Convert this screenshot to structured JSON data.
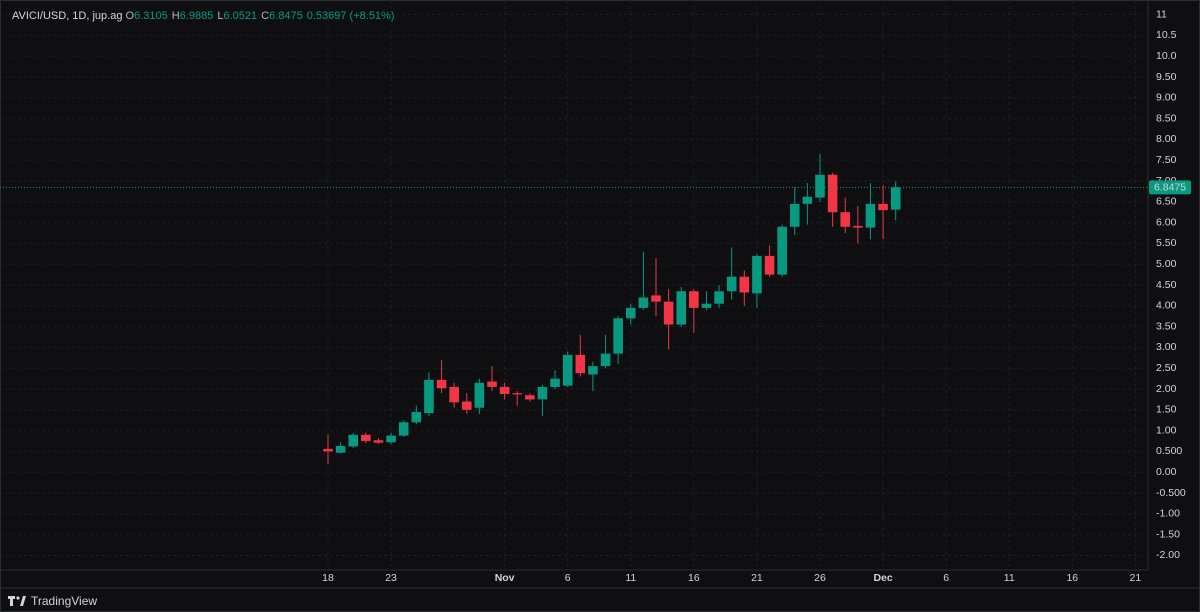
{
  "chart_data": {
    "type": "candlestick",
    "title": "AVICI/USD, 1D, jup.ag",
    "ohlc_letters": [
      "O",
      "H",
      "L",
      "C"
    ],
    "change_label": "0.53697 (+8.51%)",
    "up_color": "#089981",
    "down_color": "#f23645",
    "x": [
      "Oct 18",
      "Oct 19",
      "Oct 20",
      "Oct 21",
      "Oct 22",
      "Oct 23",
      "Oct 24",
      "Oct 25",
      "Oct 26",
      "Oct 27",
      "Oct 28",
      "Oct 29",
      "Oct 30",
      "Oct 31",
      "Nov 1",
      "Nov 2",
      "Nov 3",
      "Nov 4",
      "Nov 5",
      "Nov 6",
      "Nov 7",
      "Nov 8",
      "Nov 9",
      "Nov 10",
      "Nov 11",
      "Nov 12",
      "Nov 13",
      "Nov 14",
      "Nov 15",
      "Nov 16",
      "Nov 17",
      "Nov 18",
      "Nov 19",
      "Nov 20",
      "Nov 21",
      "Nov 22",
      "Nov 23",
      "Nov 24",
      "Nov 25",
      "Nov 26",
      "Nov 27",
      "Nov 28",
      "Nov 29",
      "Nov 30",
      "Dec 1",
      "Dec 2"
    ],
    "open": [
      0.56,
      0.47,
      0.62,
      0.9,
      0.77,
      0.72,
      0.88,
      1.2,
      1.42,
      2.22,
      2.05,
      1.7,
      1.55,
      2.18,
      2.05,
      1.9,
      1.85,
      1.75,
      2.05,
      2.08,
      2.82,
      2.35,
      2.55,
      2.85,
      3.7,
      3.95,
      4.25,
      4.1,
      3.55,
      4.35,
      3.95,
      4.05,
      4.35,
      4.7,
      4.3,
      5.2,
      4.75,
      5.9,
      6.45,
      6.6,
      7.15,
      6.25,
      5.92,
      5.88,
      6.45,
      6.3105
    ],
    "high": [
      0.9,
      0.72,
      0.95,
      0.95,
      0.82,
      0.95,
      1.25,
      1.6,
      2.4,
      2.7,
      2.15,
      1.9,
      2.25,
      2.55,
      2.15,
      1.95,
      1.9,
      2.1,
      2.45,
      2.9,
      3.3,
      2.65,
      3.3,
      3.75,
      4.05,
      5.3,
      5.15,
      4.4,
      4.45,
      4.4,
      4.35,
      4.5,
      5.4,
      4.85,
      5.25,
      5.45,
      5.95,
      6.85,
      6.95,
      7.65,
      7.2,
      6.6,
      6.4,
      6.95,
      6.9,
      6.9885
    ],
    "low": [
      0.2,
      0.45,
      0.58,
      0.7,
      0.68,
      0.68,
      0.85,
      1.15,
      1.35,
      1.9,
      1.55,
      1.4,
      1.4,
      1.95,
      1.75,
      1.6,
      1.7,
      1.35,
      2.0,
      2.05,
      2.3,
      1.95,
      2.5,
      2.6,
      3.55,
      3.9,
      3.75,
      2.95,
      3.5,
      3.35,
      3.9,
      3.95,
      4.15,
      4.0,
      3.95,
      4.7,
      4.7,
      5.7,
      5.95,
      6.5,
      5.9,
      5.75,
      5.5,
      5.6,
      5.6,
      6.0521
    ],
    "close": [
      0.5,
      0.63,
      0.9,
      0.75,
      0.71,
      0.88,
      1.2,
      1.45,
      2.22,
      2.02,
      1.68,
      1.5,
      2.15,
      2.05,
      1.88,
      1.87,
      1.75,
      2.05,
      2.25,
      2.82,
      2.38,
      2.55,
      2.85,
      3.7,
      3.95,
      4.2,
      4.1,
      3.55,
      4.35,
      3.95,
      4.05,
      4.35,
      4.7,
      4.32,
      5.2,
      4.75,
      5.9,
      6.45,
      6.62,
      7.15,
      6.25,
      5.9,
      5.88,
      6.45,
      6.3,
      6.8475
    ],
    "ylim": [
      -2.35,
      11.35
    ],
    "yticks": [
      11,
      10.5,
      {
        "value": 10,
        "label": "10.0"
      },
      {
        "value": 9.5,
        "label": "9.50"
      },
      {
        "value": 9,
        "label": "9.00"
      },
      {
        "value": 8.5,
        "label": "8.50"
      },
      {
        "value": 8,
        "label": "8.00"
      },
      {
        "value": 7.5,
        "label": "7.50"
      },
      {
        "value": 7,
        "label": "7.00"
      },
      {
        "value": 6.5,
        "label": "6.50"
      },
      {
        "value": 6,
        "label": "6.00"
      },
      {
        "value": 5.5,
        "label": "5.50"
      },
      {
        "value": 5,
        "label": "5.00"
      },
      {
        "value": 4.5,
        "label": "4.50"
      },
      {
        "value": 4,
        "label": "4.00"
      },
      {
        "value": 3.5,
        "label": "3.50"
      },
      {
        "value": 3,
        "label": "3.00"
      },
      {
        "value": 2.5,
        "label": "2.50"
      },
      {
        "value": 2,
        "label": "2.00"
      },
      {
        "value": 1.5,
        "label": "1.50"
      },
      {
        "value": 1,
        "label": "1.00"
      },
      {
        "value": 0.5,
        "label": "0.500"
      },
      {
        "value": 0,
        "label": "0.00"
      },
      {
        "value": -0.5,
        "label": "-0.500"
      },
      {
        "value": -1,
        "label": "-1.00"
      },
      {
        "value": -1.5,
        "label": "-1.50"
      },
      {
        "value": -2,
        "label": "-2.00"
      }
    ],
    "xlim": [
      "Sep 22",
      "Dec 22"
    ],
    "xticks": [
      {
        "value": "Oct 18",
        "label": "18"
      },
      {
        "value": "Oct 23",
        "label": "23"
      },
      {
        "value": "Nov 1",
        "label": "Nov"
      },
      {
        "value": "Nov 6",
        "label": "6"
      },
      {
        "value": "Nov 11",
        "label": "11"
      },
      {
        "value": "Nov 16",
        "label": "16"
      },
      {
        "value": "Nov 21",
        "label": "21"
      },
      {
        "value": "Nov 26",
        "label": "26"
      },
      {
        "value": "Dec 1",
        "label": "Dec"
      },
      {
        "value": "Dec 6",
        "label": "6"
      },
      {
        "value": "Dec 11",
        "label": "11"
      },
      {
        "value": "Dec 16",
        "label": "16"
      },
      {
        "value": "Dec 21",
        "label": "21"
      }
    ],
    "grid": true
  },
  "branding": "TradingView"
}
